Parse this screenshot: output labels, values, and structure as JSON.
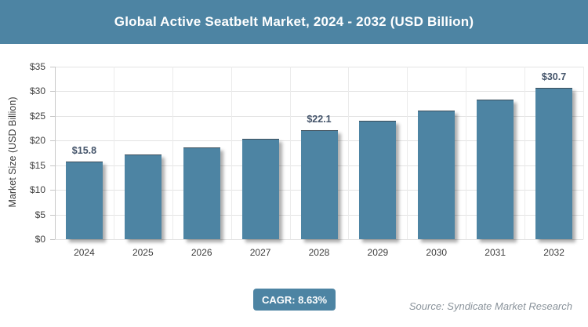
{
  "header": {
    "title": "Global Active Seatbelt Market, 2024 - 2032 (USD Billion)"
  },
  "footer": {
    "cagr_label": "CAGR: 8.63%",
    "source": "Source: Syndicate Market Research"
  },
  "colors": {
    "accent": "#4d84a3",
    "data_label": "#44546a",
    "axis_text": "#404040",
    "gridline": "#e3e3e3",
    "source_text": "#8a939b",
    "title_text": "#ffffff"
  },
  "chart_data": {
    "type": "bar",
    "title": "Global Active Seatbelt Market, 2024 - 2032 (USD Billion)",
    "categories": [
      "2024",
      "2025",
      "2026",
      "2027",
      "2028",
      "2029",
      "2030",
      "2031",
      "2032"
    ],
    "values": [
      15.8,
      17.2,
      18.6,
      20.3,
      22.1,
      24.0,
      26.1,
      28.3,
      30.7
    ],
    "data_labels": [
      "$15.8",
      null,
      null,
      null,
      "$22.1",
      null,
      null,
      null,
      "$30.7"
    ],
    "xlabel": "",
    "ylabel": "Market Size (USD Billion)",
    "ylim": [
      0,
      35
    ],
    "ytick_step": 5,
    "ytick_labels": [
      "$0",
      "$5",
      "$10",
      "$15",
      "$20",
      "$25",
      "$30",
      "$35"
    ],
    "grid": true,
    "legend": "none",
    "bar_color": "#4d84a3"
  }
}
